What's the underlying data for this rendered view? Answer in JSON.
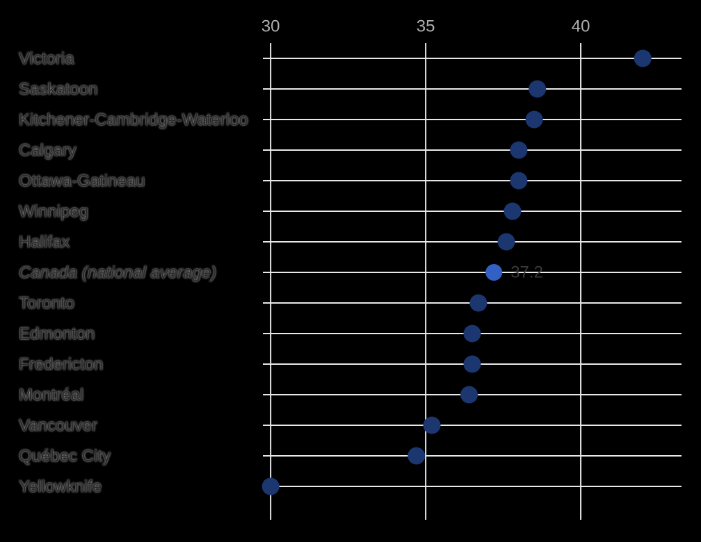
{
  "chart_data": {
    "type": "dot",
    "categories": [
      "Victoria",
      "Saskatoon",
      "Kitchener-Cambridge-Waterloo",
      "Calgary",
      "Ottawa-Gatineau",
      "Winnipeg",
      "Halifax",
      "Canada (national average)",
      "Toronto",
      "Edmonton",
      "Fredericton",
      "Montréal",
      "Vancouver",
      "Québec City",
      "Yellowknife"
    ],
    "values": [
      42.0,
      38.6,
      38.5,
      38.0,
      38.0,
      37.8,
      37.6,
      37.2,
      36.7,
      36.5,
      36.5,
      36.4,
      35.2,
      34.7,
      30.0
    ],
    "color": "#1c3670",
    "highlight_color": "#3260c4",
    "highlight_index": 7,
    "xlim": [
      29.75,
      43.25
    ],
    "xticks": [
      30,
      35,
      40
    ],
    "grid": true
  }
}
